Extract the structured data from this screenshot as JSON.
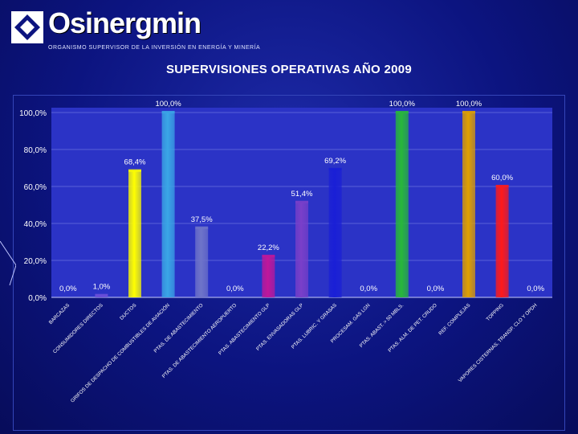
{
  "header": {
    "logo_name": "Osinergmin",
    "logo_subtitle": "ORGANISMO SUPERVISOR DE LA INVERSIÓN EN ENERGÍA Y MINERÍA",
    "title": "SUPERVISIONES OPERATIVAS AÑO 2009"
  },
  "colors": {
    "background": "#0c1480",
    "plot_area": "#2b33c6"
  },
  "chart_data": {
    "type": "bar",
    "title": "",
    "xlabel": "",
    "ylabel": "",
    "ylim": [
      0,
      100
    ],
    "y_ticks": [
      "0,0%",
      "20,0%",
      "40,0%",
      "60,0%",
      "80,0%",
      "100,0%"
    ],
    "grid": true,
    "categories": [
      "BARCAZAS",
      "CONSUMIDORES DIRECTOS",
      "DUCTOS",
      "GRIFOS DE DESPACHO DE COMBUSTIBLES DE AVIACIÓN",
      "PTAS. DE ABASTECIMIENTO",
      "PTAS. DE ABASTECIMIENTO AEROPUERTO",
      "PTAS. ABASTECIMIENTO GLP",
      "PTAS. ENVASADORAS GLP",
      "PTAS. LUBRIC. Y GRASAS",
      "PROCESAM. GAS LGN",
      "PTAS. ABAST. > 50 MBLS.",
      "PTAS. ALM. DE PET. CRUDO",
      "REF. COMPLEJAS",
      "TOPPING",
      "VAPORES CISTERNAS, TRANSP. CLO Y OPDH"
    ],
    "values": [
      0.0,
      1.0,
      68.4,
      100.0,
      37.5,
      0.0,
      22.2,
      51.4,
      69.2,
      0.0,
      100.0,
      0.0,
      100.0,
      60.0,
      0.0
    ],
    "value_labels": [
      "0,0%",
      "1,0%",
      "68,4%",
      "100,0%",
      "37,5%",
      "0,0%",
      "22,2%",
      "51,4%",
      "69,2%",
      "0,0%",
      "100,0%",
      "0,0%",
      "100,0%",
      "60,0%",
      "0,0%"
    ],
    "bar_colors": [
      "#8a8aff",
      "#6a4fd8",
      "#ffff00",
      "#3aa6e6",
      "#6f74c9",
      "#9090ff",
      "#c0179a",
      "#7a3fc9",
      "#1a1fd6",
      "#9090ff",
      "#28b83a",
      "#9090ff",
      "#e0a000",
      "#ff1a1a",
      "#9090ff"
    ]
  }
}
